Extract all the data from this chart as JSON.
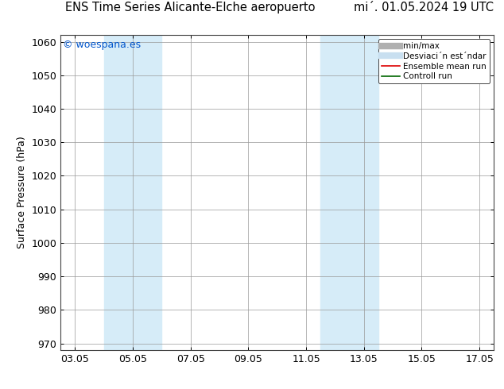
{
  "title_left": "ENS Time Series Alicante-Elche aeropuerto",
  "title_right": "mi´. 01.05.2024 19 UTC",
  "ylabel": "Surface Pressure (hPa)",
  "ylim": [
    968,
    1062
  ],
  "yticks": [
    970,
    980,
    990,
    1000,
    1010,
    1020,
    1030,
    1040,
    1050,
    1060
  ],
  "xtick_labels": [
    "03.05",
    "05.05",
    "07.05",
    "09.05",
    "11.05",
    "13.05",
    "15.05",
    "17.05"
  ],
  "xtick_positions": [
    3,
    5,
    7,
    9,
    11,
    13,
    15,
    17
  ],
  "xlim": [
    2.5,
    17.5
  ],
  "shade_bands": [
    {
      "x_start": 4.0,
      "x_end": 6.0,
      "color": "#d6ecf8"
    },
    {
      "x_start": 11.5,
      "x_end": 13.5,
      "color": "#d6ecf8"
    }
  ],
  "watermark": "© woespana.es",
  "watermark_color": "#0055cc",
  "legend_entries": [
    {
      "label": "min/max",
      "color": "#b0b0b0",
      "linewidth": 6,
      "linestyle": "-"
    },
    {
      "label": "Desviaci´n est´ndar",
      "color": "#c8dff0",
      "linewidth": 6,
      "linestyle": "-"
    },
    {
      "label": "Ensemble mean run",
      "color": "#dd0000",
      "linewidth": 1.2,
      "linestyle": "-"
    },
    {
      "label": "Controll run",
      "color": "#006600",
      "linewidth": 1.2,
      "linestyle": "-"
    }
  ],
  "background_color": "#ffffff",
  "grid_color": "#999999",
  "title_fontsize": 10.5,
  "axis_label_fontsize": 9,
  "tick_fontsize": 9
}
